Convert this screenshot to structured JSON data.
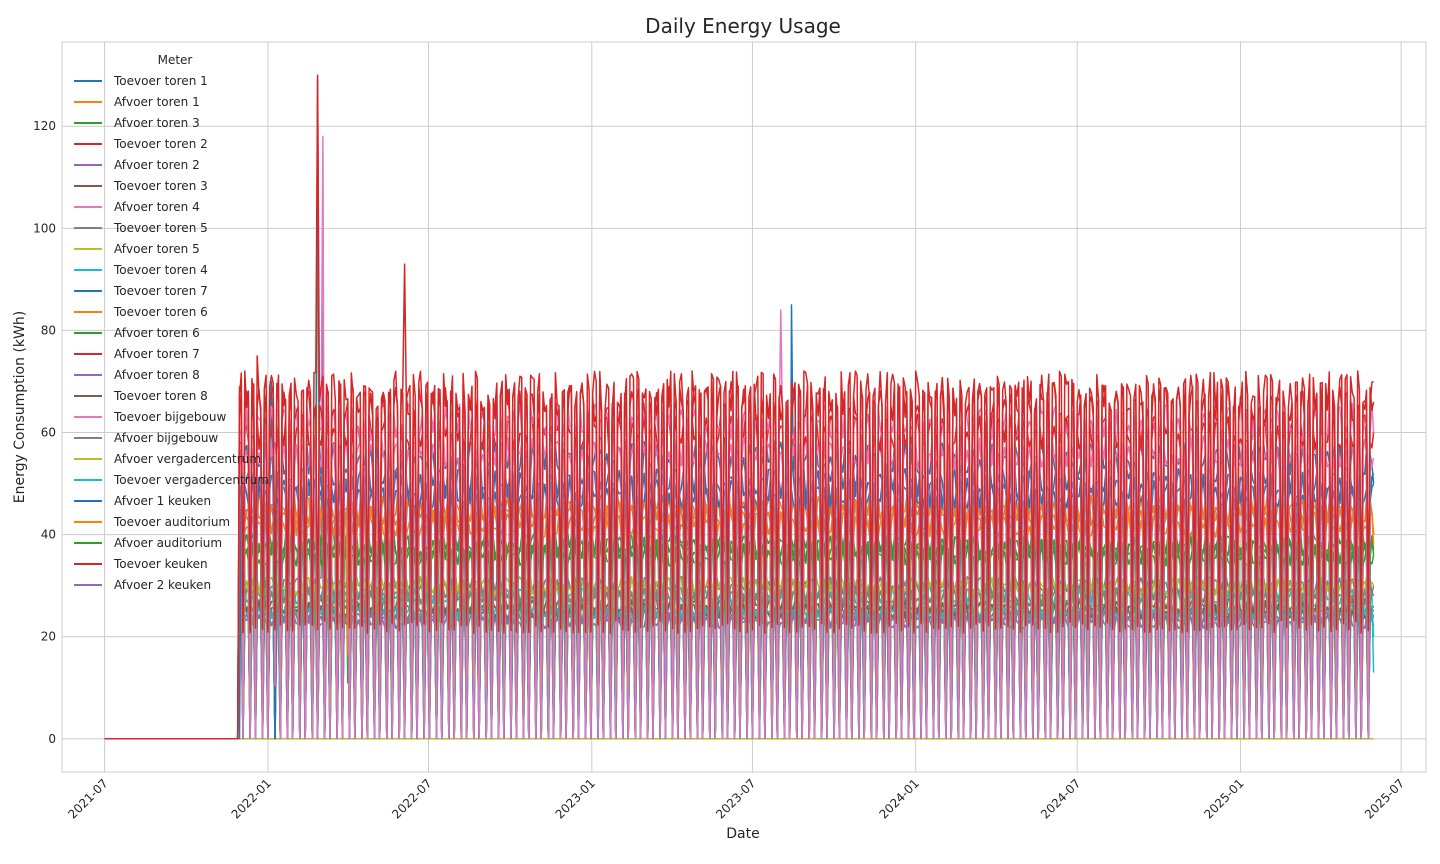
{
  "chart_data": {
    "type": "line",
    "title": "Daily Energy Usage",
    "xlabel": "Date",
    "ylabel": "Energy Consumption (kWh)",
    "grid": true,
    "legend_title": "Meter",
    "legend_position": "upper-left",
    "x_range": [
      "2021-05-14",
      "2025-07-29"
    ],
    "y_range": [
      -6.5,
      136.5
    ],
    "x_ticks": [
      "2021-07",
      "2022-01",
      "2022-07",
      "2023-01",
      "2023-07",
      "2024-01",
      "2024-07",
      "2025-01",
      "2025-07"
    ],
    "y_ticks": [
      0,
      20,
      40,
      60,
      80,
      100,
      120
    ],
    "data_start": "2021-07-01",
    "data_end": "2025-05-31",
    "series": [
      {
        "name": "Toevoer toren 1",
        "color": "#1f77b4",
        "key_points": [
          [
            "2021-07-01",
            0
          ],
          [
            "2021-11-30",
            0
          ],
          [
            "2022-02-26",
            129
          ],
          [
            "2023-08-15",
            85
          ],
          [
            "2025-05-31",
            52
          ]
        ],
        "typical_weekday": 50,
        "typical_weekend": 0
      },
      {
        "name": "Afvoer toren 1",
        "color": "#ff7f0e",
        "key_points": [
          [
            "2021-07-01",
            0
          ],
          [
            "2022-02-26",
            125
          ],
          [
            "2025-05-31",
            40
          ]
        ],
        "typical_weekday": 45,
        "typical_weekend": 0
      },
      {
        "name": "Afvoer toren 3",
        "color": "#2ca02c",
        "key_points": [
          [
            "2021-07-01",
            0
          ],
          [
            "2022-02-26",
            120
          ],
          [
            "2025-05-31",
            37
          ]
        ],
        "typical_weekday": 38,
        "typical_weekend": 0
      },
      {
        "name": "Toevoer toren 2",
        "color": "#d62728",
        "key_points": [
          [
            "2021-07-01",
            0
          ],
          [
            "2021-12-21",
            75
          ],
          [
            "2022-02-27",
            130
          ],
          [
            "2022-06-04",
            93
          ],
          [
            "2025-05-31",
            70
          ]
        ],
        "typical_weekday": 68,
        "typical_weekend": 22
      },
      {
        "name": "Afvoer toren 2",
        "color": "#9467bd",
        "key_points": [
          [
            "2021-07-01",
            0
          ],
          [
            "2025-05-31",
            24
          ]
        ],
        "typical_weekday": 24,
        "typical_weekend": 0
      },
      {
        "name": "Toevoer toren 3",
        "color": "#8c564b",
        "key_points": [
          [
            "2021-07-01",
            0
          ],
          [
            "2025-05-31",
            26
          ]
        ],
        "typical_weekday": 26,
        "typical_weekend": 22
      },
      {
        "name": "Afvoer toren 4",
        "color": "#e377c2",
        "key_points": [
          [
            "2021-07-01",
            0
          ],
          [
            "2022-03-05",
            118
          ],
          [
            "2023-08-02",
            84
          ],
          [
            "2025-05-31",
            60
          ]
        ],
        "typical_weekday": 62,
        "typical_weekend": 10
      },
      {
        "name": "Toevoer toren 5",
        "color": "#7f7f7f",
        "key_points": [
          [
            "2021-07-01",
            0
          ],
          [
            "2022-03-04",
            85
          ],
          [
            "2025-05-31",
            30
          ]
        ],
        "typical_weekday": 30,
        "typical_weekend": 5
      },
      {
        "name": "Afvoer toren 5",
        "color": "#bcbd22",
        "key_points": [
          [
            "2021-07-01",
            0
          ],
          [
            "2025-05-31",
            30
          ]
        ],
        "typical_weekday": 30,
        "typical_weekend": 0
      },
      {
        "name": "Toevoer toren 4",
        "color": "#17becf",
        "key_points": [
          [
            "2021-07-01",
            0
          ],
          [
            "2025-05-31",
            13
          ]
        ],
        "typical_weekday": 28,
        "typical_weekend": 0
      },
      {
        "name": "Toevoer toren 7",
        "color": "#1f77b4",
        "key_points": [
          [
            "2021-07-01",
            0
          ],
          [
            "2022-01-05",
            70
          ],
          [
            "2025-05-31",
            50
          ]
        ],
        "typical_weekday": 48,
        "typical_weekend": 0
      },
      {
        "name": "Toevoer toren 6",
        "color": "#ff7f0e",
        "key_points": [
          [
            "2021-07-01",
            0
          ],
          [
            "2022-04-01",
            17
          ],
          [
            "2025-05-31",
            38
          ]
        ],
        "typical_weekday": 42,
        "typical_weekend": 14
      },
      {
        "name": "Afvoer toren 6",
        "color": "#2ca02c",
        "key_points": [
          [
            "2021-07-01",
            0
          ],
          [
            "2022-04-01",
            11
          ],
          [
            "2025-05-31",
            36
          ]
        ],
        "typical_weekday": 37,
        "typical_weekend": 11
      },
      {
        "name": "Afvoer toren 7",
        "color": "#d62728",
        "key_points": [
          [
            "2021-07-01",
            0
          ],
          [
            "2025-05-31",
            60
          ]
        ],
        "typical_weekday": 60,
        "typical_weekend": 22
      },
      {
        "name": "Afvoer toren 8",
        "color": "#9467bd",
        "key_points": [
          [
            "2021-07-01",
            0
          ],
          [
            "2025-05-31",
            22
          ]
        ],
        "typical_weekday": 23,
        "typical_weekend": 0
      },
      {
        "name": "Toevoer toren 8",
        "color": "#8c564b",
        "key_points": [
          [
            "2021-07-01",
            0
          ],
          [
            "2025-05-31",
            25
          ]
        ],
        "typical_weekday": 25,
        "typical_weekend": 22
      },
      {
        "name": "Toevoer bijgebouw",
        "color": "#e377c2",
        "key_points": [
          [
            "2021-07-01",
            0
          ],
          [
            "2022-01-10",
            58
          ],
          [
            "2025-05-31",
            55
          ]
        ],
        "typical_weekday": 56,
        "typical_weekend": 0
      },
      {
        "name": "Afvoer bijgebouw",
        "color": "#7f7f7f",
        "key_points": [
          [
            "2021-07-01",
            0
          ],
          [
            "2025-05-31",
            28
          ]
        ],
        "typical_weekday": 28,
        "typical_weekend": 0
      },
      {
        "name": "Afvoer vergadercentrum",
        "color": "#bcbd22",
        "key_points": [
          [
            "2021-07-01",
            0
          ],
          [
            "2025-05-31",
            0
          ]
        ],
        "typical_weekday": 0,
        "typical_weekend": 0
      },
      {
        "name": "Toevoer vergadercentrum",
        "color": "#17becf",
        "key_points": [
          [
            "2021-07-01",
            0
          ],
          [
            "2025-05-31",
            20
          ]
        ],
        "typical_weekday": 25,
        "typical_weekend": 0
      },
      {
        "name": "Afvoer 1 keuken",
        "color": "#1f77b4",
        "key_points": [
          [
            "2021-07-01",
            0
          ],
          [
            "2025-05-31",
            50
          ]
        ],
        "typical_weekday": 55,
        "typical_weekend": 0
      },
      {
        "name": "Toevoer auditorium",
        "color": "#ff7f0e",
        "key_points": [
          [
            "2021-07-01",
            0
          ],
          [
            "2025-05-31",
            40
          ]
        ],
        "typical_weekday": 44,
        "typical_weekend": 0
      },
      {
        "name": "Afvoer auditorium",
        "color": "#2ca02c",
        "key_points": [
          [
            "2021-07-01",
            0
          ],
          [
            "2025-05-31",
            36
          ]
        ],
        "typical_weekday": 36,
        "typical_weekend": 0
      },
      {
        "name": "Toevoer keuken",
        "color": "#d62728",
        "key_points": [
          [
            "2021-07-01",
            0
          ],
          [
            "2025-05-31",
            66
          ]
        ],
        "typical_weekday": 66,
        "typical_weekend": 22
      },
      {
        "name": "Afvoer 2 keuken",
        "color": "#9467bd",
        "key_points": [
          [
            "2021-07-01",
            0
          ],
          [
            "2025-05-31",
            24
          ]
        ],
        "typical_weekday": 24,
        "typical_weekend": 0
      }
    ]
  }
}
